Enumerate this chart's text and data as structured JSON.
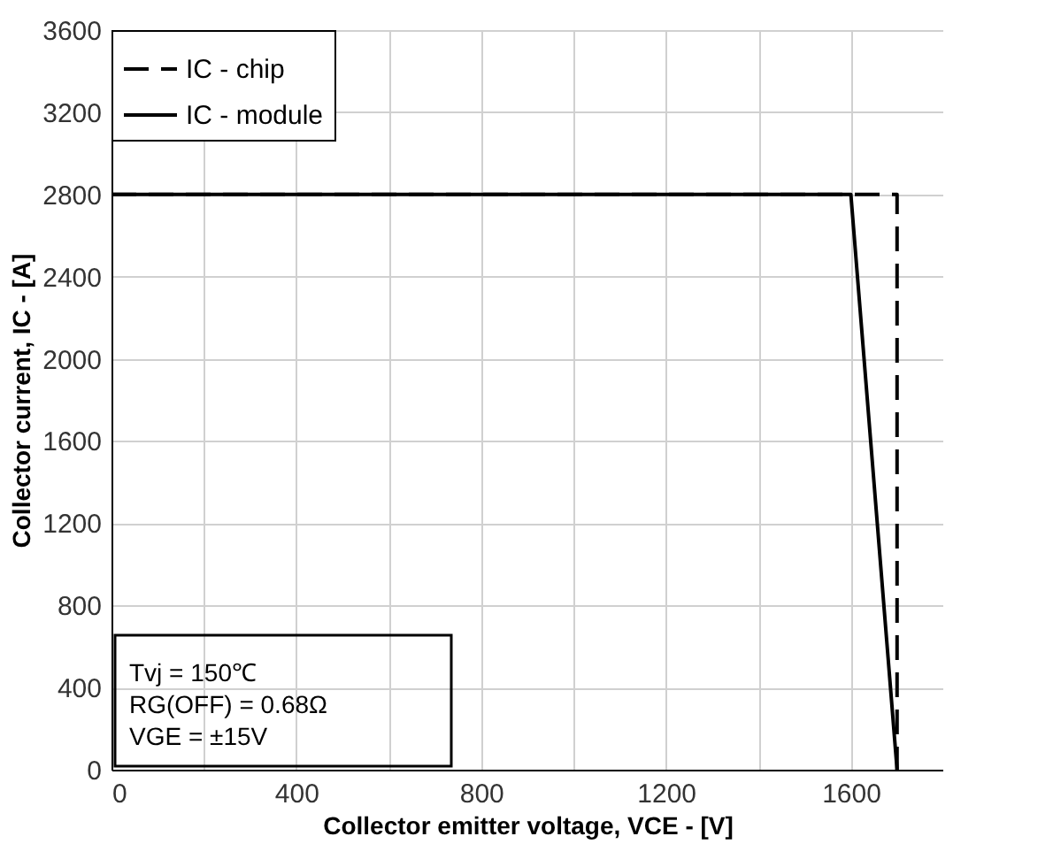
{
  "chart_data": {
    "type": "line",
    "xlabel": "Collector emitter voltage, VCE - [V]",
    "ylabel": "Collector current, IC - [A]",
    "xlim": [
      0,
      1800
    ],
    "ylim": [
      0,
      3600
    ],
    "xticks": [
      0,
      {
        "value": 200,
        "label": null
      },
      400,
      {
        "value": 600,
        "label": null
      },
      800,
      {
        "value": 1000,
        "label": null
      },
      1200,
      {
        "value": 1400,
        "label": null
      },
      1600,
      {
        "value": 1800,
        "label": null
      }
    ],
    "yticks": [
      0,
      400,
      800,
      1200,
      1600,
      2000,
      2400,
      2800,
      3200,
      3600
    ],
    "grid": true,
    "legend": "top left",
    "series": [
      {
        "name": "IC - chip",
        "color": "#000000",
        "line_style": "dashed",
        "x": [
          0,
          1700,
          1700
        ],
        "values": [
          2800,
          2800,
          0
        ]
      },
      {
        "name": "IC - module",
        "color": "#000000",
        "line_style": "solid",
        "x": [
          0,
          1600,
          1700
        ],
        "values": [
          2800,
          2800,
          0
        ]
      }
    ],
    "annotations": [
      "Tvj = 150℃",
      "RG(OFF) = 0.68Ω",
      "VGE = ±15V"
    ]
  }
}
